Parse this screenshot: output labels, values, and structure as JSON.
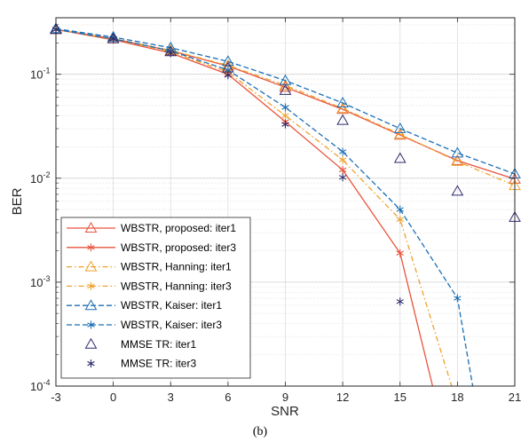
{
  "chart_data": {
    "type": "line",
    "caption": "(b)",
    "xlabel": "SNR",
    "ylabel": "BER",
    "xlim": [
      -3,
      21
    ],
    "ylim": [
      0.0001,
      0.35
    ],
    "y_scale": "log",
    "grid": true,
    "legend_position": "bottom-left",
    "x_ticks": [
      "-3",
      "0",
      "3",
      "6",
      "9",
      "12",
      "15",
      "18",
      "21"
    ],
    "y_ticks": [
      {
        "base": "10",
        "exp": "-1",
        "value": 0.1
      },
      {
        "base": "10",
        "exp": "-2",
        "value": 0.01
      },
      {
        "base": "10",
        "exp": "-3",
        "value": 0.001
      },
      {
        "base": "10",
        "exp": "-4",
        "value": 0.0001
      }
    ],
    "series": [
      {
        "name": "WBSTR, proposed: iter1",
        "color": "#e8553e",
        "line": "solid",
        "marker": "triangle",
        "x": [
          -3,
          0,
          3,
          6,
          9,
          12,
          15,
          18,
          21
        ],
        "y": [
          0.27,
          0.22,
          0.168,
          0.12,
          0.075,
          0.046,
          0.026,
          0.0148,
          0.0098
        ]
      },
      {
        "name": "WBSTR, proposed: iter3",
        "color": "#e8553e",
        "line": "solid",
        "marker": "asterisk",
        "x": [
          -3,
          0,
          3,
          6,
          9,
          12,
          15,
          16.7
        ],
        "y": [
          0.27,
          0.215,
          0.16,
          0.1,
          0.035,
          0.012,
          0.0019,
          0.0001
        ],
        "marker_count": 7
      },
      {
        "name": "WBSTR, Hanning: iter1",
        "color": "#efa12c",
        "line": "dashdot",
        "marker": "triangle",
        "x": [
          -3,
          0,
          3,
          6,
          9,
          12,
          15,
          18,
          21
        ],
        "y": [
          0.27,
          0.22,
          0.17,
          0.122,
          0.078,
          0.047,
          0.0265,
          0.0145,
          0.0085
        ]
      },
      {
        "name": "WBSTR, Hanning: iter3",
        "color": "#efa12c",
        "line": "dashdot",
        "marker": "asterisk",
        "x": [
          -3,
          0,
          3,
          6,
          9,
          12,
          15,
          17.7
        ],
        "y": [
          0.27,
          0.218,
          0.165,
          0.105,
          0.04,
          0.015,
          0.004,
          0.0001
        ],
        "marker_count": 7
      },
      {
        "name": "WBSTR, Kaiser: iter1",
        "color": "#1b6fb5",
        "line": "dashed",
        "marker": "triangle",
        "x": [
          -3,
          0,
          3,
          6,
          9,
          12,
          15,
          18,
          21
        ],
        "y": [
          0.275,
          0.228,
          0.18,
          0.133,
          0.087,
          0.053,
          0.03,
          0.0175,
          0.011
        ]
      },
      {
        "name": "WBSTR, Kaiser: iter3",
        "color": "#1b6fb5",
        "line": "dashed",
        "marker": "asterisk",
        "x": [
          -3,
          0,
          3,
          6,
          9,
          12,
          15,
          18,
          18.8
        ],
        "y": [
          0.27,
          0.22,
          0.168,
          0.11,
          0.048,
          0.018,
          0.005,
          0.0007,
          0.0001
        ],
        "marker_count": 8
      },
      {
        "name": "MMSE TR: iter1",
        "color": "#2e2a6e",
        "line": "none",
        "marker": "triangle",
        "x": [
          -3,
          0,
          3,
          6,
          9,
          12,
          15,
          18,
          21
        ],
        "y": [
          0.27,
          0.22,
          0.165,
          0.115,
          0.07,
          0.036,
          0.0155,
          0.0075,
          0.0042
        ]
      },
      {
        "name": "MMSE TR: iter3",
        "color": "#2e2a6e",
        "line": "none",
        "marker": "asterisk",
        "x": [
          -3,
          0,
          3,
          6,
          9,
          12,
          15
        ],
        "y": [
          0.27,
          0.22,
          0.16,
          0.098,
          0.033,
          0.0102,
          0.00065
        ]
      }
    ]
  }
}
